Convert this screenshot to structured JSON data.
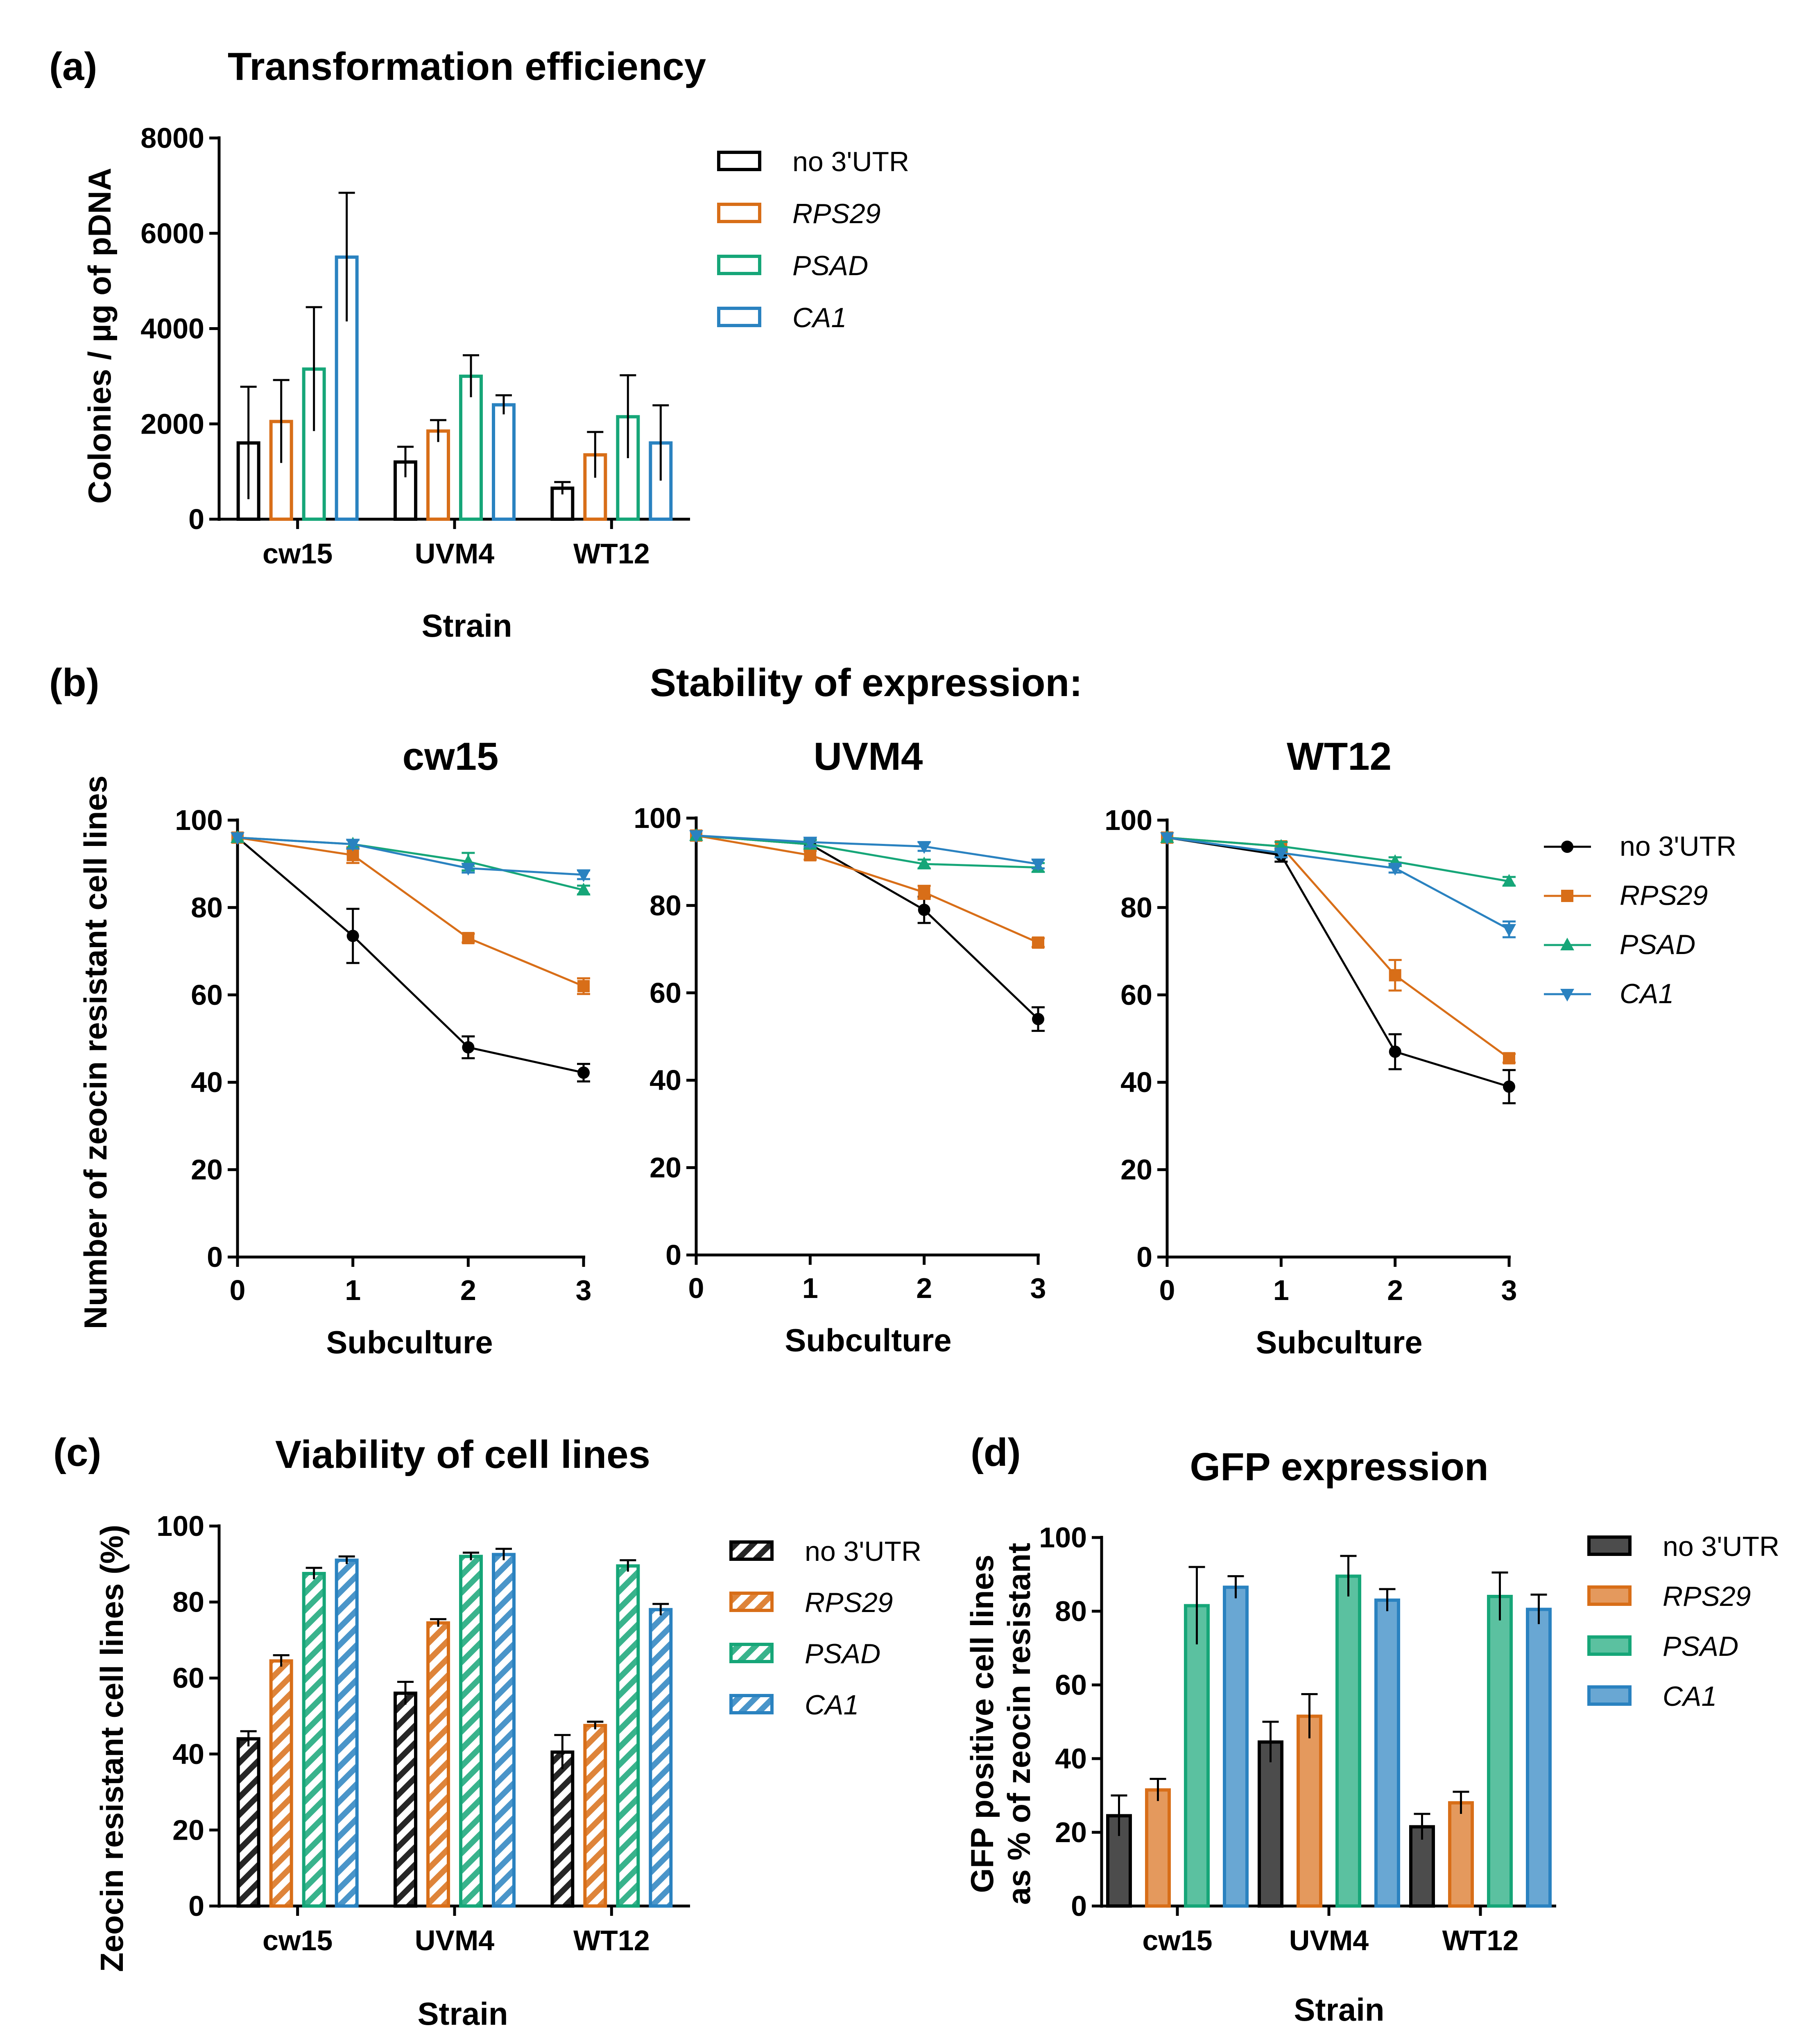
{
  "chart_data": [
    {
      "id": "a",
      "panel_label": "(a)",
      "type": "bar",
      "style": "outline",
      "title": "Transformation efficiency",
      "xlabel": "Strain",
      "ylabel": "Colonies / µg of pDNA",
      "ylim": [
        0,
        8000
      ],
      "yticks": [
        "0",
        "2000",
        "4000",
        "6000",
        "8000"
      ],
      "categories": [
        "cw15",
        "UVM4",
        "WT12"
      ],
      "legend_position": "right",
      "series": [
        {
          "name": "no 3'UTR",
          "color": "#000000",
          "values": [
            1600,
            1200,
            650
          ],
          "errors": [
            1180,
            320,
            130
          ]
        },
        {
          "name": "RPS29",
          "color": "#d86e18",
          "values": [
            2050,
            1850,
            1350
          ],
          "errors": [
            870,
            230,
            480
          ]
        },
        {
          "name": "PSAD",
          "color": "#16a678",
          "values": [
            3150,
            3000,
            2150
          ],
          "errors": [
            1300,
            440,
            870
          ]
        },
        {
          "name": "CA1",
          "color": "#2a82c0",
          "values": [
            5500,
            2400,
            1600
          ],
          "errors": [
            1350,
            200,
            790
          ]
        }
      ]
    },
    {
      "id": "b",
      "panel_label": "(b)",
      "type": "line",
      "title": "Stability of expression:",
      "xlabel": "Subculture",
      "ylabel": "Number of zeocin resistant cell lines",
      "ylim": [
        0,
        100
      ],
      "yticks": [
        "0",
        "20",
        "40",
        "60",
        "80",
        "100"
      ],
      "x": [
        0,
        1,
        2,
        3
      ],
      "xticks": [
        "0",
        "1",
        "2",
        "3"
      ],
      "legend_position": "right",
      "series_styles": [
        {
          "name": "no 3'UTR",
          "color": "#000000",
          "marker": "circle"
        },
        {
          "name": "RPS29",
          "color": "#d86e18",
          "marker": "square"
        },
        {
          "name": "PSAD",
          "color": "#16a678",
          "marker": "triangle-up"
        },
        {
          "name": "CA1",
          "color": "#2a82c0",
          "marker": "triangle-down"
        }
      ],
      "subplots": [
        {
          "title": "cw15",
          "series": [
            {
              "name": "no 3'UTR",
              "values": [
                96,
                73.5,
                48,
                42.2
              ],
              "errors": [
                0,
                6.2,
                2.5,
                2
              ]
            },
            {
              "name": "RPS29",
              "values": [
                96,
                92,
                73,
                62
              ],
              "errors": [
                0,
                1.8,
                1,
                1.8
              ]
            },
            {
              "name": "PSAD",
              "values": [
                96,
                94.5,
                90.5,
                84
              ],
              "errors": [
                0,
                1,
                2,
                1
              ]
            },
            {
              "name": "CA1",
              "values": [
                96,
                94.5,
                89,
                87.5
              ],
              "errors": [
                0,
                1,
                1,
                1
              ]
            }
          ]
        },
        {
          "title": "UVM4",
          "series": [
            {
              "name": "no 3'UTR",
              "values": [
                96,
                94,
                79,
                54
              ],
              "errors": [
                0,
                1,
                3,
                2.7
              ]
            },
            {
              "name": "RPS29",
              "values": [
                96,
                91.5,
                83,
                71.5
              ],
              "errors": [
                0,
                1,
                1.5,
                1
              ]
            },
            {
              "name": "PSAD",
              "values": [
                96,
                94,
                89.5,
                88.7
              ],
              "errors": [
                0,
                1,
                1,
                1
              ]
            },
            {
              "name": "CA1",
              "values": [
                96,
                94.5,
                93.5,
                89.5
              ],
              "errors": [
                0,
                1,
                1,
                1
              ]
            }
          ]
        },
        {
          "title": "WT12",
          "series": [
            {
              "name": "no 3'UTR",
              "values": [
                96,
                92,
                47,
                39
              ],
              "errors": [
                0,
                1.5,
                4,
                3.8
              ]
            },
            {
              "name": "RPS29",
              "values": [
                96,
                94,
                64.5,
                45.5
              ],
              "errors": [
                0,
                1,
                3.5,
                1
              ]
            },
            {
              "name": "PSAD",
              "values": [
                96,
                94,
                90.5,
                86
              ],
              "errors": [
                0,
                1,
                1,
                1
              ]
            },
            {
              "name": "CA1",
              "values": [
                96,
                92.5,
                89,
                75
              ],
              "errors": [
                0,
                1,
                1,
                1.8
              ]
            }
          ]
        }
      ]
    },
    {
      "id": "c",
      "panel_label": "(c)",
      "type": "bar",
      "style": "hatched",
      "title": "Viability of cell lines",
      "xlabel": "Strain",
      "ylabel": "Zeocin resistant cell lines (%)",
      "ylim": [
        0,
        100
      ],
      "yticks": [
        "0",
        "20",
        "40",
        "60",
        "80",
        "100"
      ],
      "categories": [
        "cw15",
        "UVM4",
        "WT12"
      ],
      "legend_position": "right",
      "series": [
        {
          "name": "no 3'UTR",
          "color": "#000000",
          "values": [
            44,
            56,
            40.5
          ],
          "errors": [
            2,
            3,
            4.5
          ]
        },
        {
          "name": "RPS29",
          "color": "#d86e18",
          "values": [
            64.5,
            74.5,
            47.5
          ],
          "errors": [
            1.5,
            1,
            1
          ]
        },
        {
          "name": "PSAD",
          "color": "#16a678",
          "values": [
            87.5,
            92,
            89.5
          ],
          "errors": [
            1.5,
            1,
            1.5
          ]
        },
        {
          "name": "CA1",
          "color": "#2a82c0",
          "values": [
            91,
            92.5,
            78
          ],
          "errors": [
            1,
            1.5,
            1.5
          ]
        }
      ]
    },
    {
      "id": "d",
      "panel_label": "(d)",
      "type": "bar",
      "style": "filled",
      "title": "GFP expression",
      "xlabel": "Strain",
      "ylabel": "GFP positive cell lines as % of zeocin resistant",
      "ylim": [
        0,
        100
      ],
      "yticks": [
        "0",
        "20",
        "40",
        "60",
        "80",
        "100"
      ],
      "categories": [
        "cw15",
        "UVM4",
        "WT12"
      ],
      "legend_position": "right",
      "series": [
        {
          "name": "no 3'UTR",
          "color": "#000000",
          "values": [
            24.5,
            44.5,
            21.5
          ],
          "errors": [
            5.5,
            5.5,
            3.5
          ]
        },
        {
          "name": "RPS29",
          "color": "#d86e18",
          "values": [
            31.5,
            51.5,
            28
          ],
          "errors": [
            3,
            6,
            3
          ]
        },
        {
          "name": "PSAD",
          "color": "#16a678",
          "values": [
            81.5,
            89.5,
            84
          ],
          "errors": [
            10.5,
            5.5,
            6.5
          ]
        },
        {
          "name": "CA1",
          "color": "#2a82c0",
          "values": [
            86.5,
            83,
            80.5
          ],
          "errors": [
            3,
            3,
            4
          ]
        }
      ]
    }
  ]
}
